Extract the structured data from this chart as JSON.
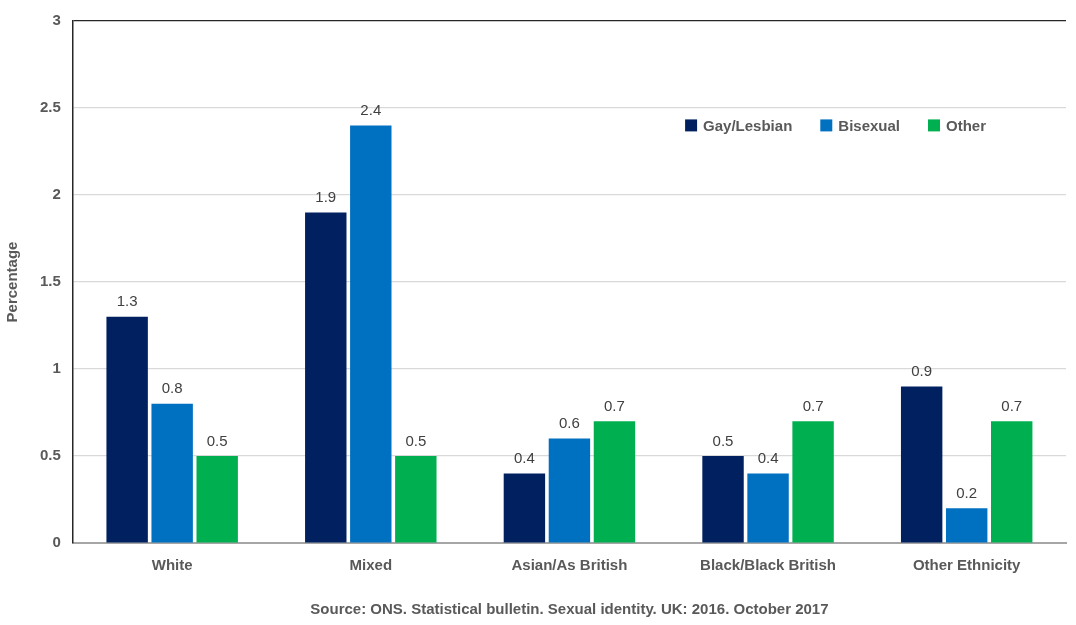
{
  "chart_data": {
    "type": "bar",
    "ylabel": "Percentage",
    "categories": [
      "White",
      "Mixed",
      "Asian/As British",
      "Black/Black British",
      "Other Ethnicity"
    ],
    "series": [
      {
        "name": "Gay/Lesbian",
        "color": "#002060",
        "values": [
          1.3,
          1.9,
          0.4,
          0.5,
          0.9
        ]
      },
      {
        "name": "Bisexual",
        "color": "#0070c0",
        "values": [
          0.8,
          2.4,
          0.6,
          0.4,
          0.2
        ]
      },
      {
        "name": "Other",
        "color": "#00b050",
        "values": [
          0.5,
          0.5,
          0.7,
          0.7,
          0.7
        ]
      }
    ],
    "ylim": [
      0,
      3
    ],
    "yticks": [
      0,
      0.5,
      1,
      1.5,
      2,
      2.5,
      3
    ],
    "grid": "y",
    "data_labels": true,
    "legend": "top right",
    "annotations": [
      "Source: ONS. Statistical bulletin. Sexual identity. UK: 2016. October 2017"
    ]
  }
}
